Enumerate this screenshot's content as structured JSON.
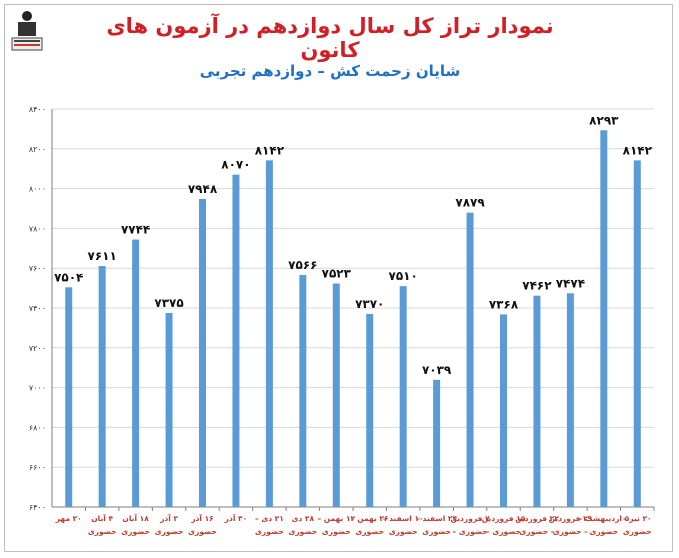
{
  "title": "نمودار تراز کل سال دوازدهم در آزمون های کانون",
  "subtitle": "شایان زحمت کش – دوازدهم تجربی",
  "colors": {
    "bar": "#5b9bd5",
    "title": "#d21f26",
    "subtitle": "#1f6fc4",
    "grid": "#d9d9d9",
    "tick_x": "#c0392b"
  },
  "chart_data": {
    "type": "bar",
    "title": "نمودار تراز کل سال دوازدهم در آزمون های کانون",
    "subtitle": "شایان زحمت کش – دوازدهم تجربی",
    "xlabel": "",
    "ylabel": "",
    "ylim": [
      6400,
      8400
    ],
    "yticks": [
      "۸۴۰۰",
      "۸۲۰۰",
      "۸۰۰۰",
      "۷۸۰۰",
      "۷۶۰۰",
      "۷۴۰۰",
      "۷۲۰۰",
      "۷۰۰۰",
      "۶۸۰۰",
      "۶۶۰۰",
      "۶۴۰۰"
    ],
    "yticks_values": [
      8400,
      8200,
      8000,
      7800,
      7600,
      7400,
      7200,
      7000,
      6800,
      6600,
      6400
    ],
    "grid": true,
    "categories": [
      [
        "۲۰ مهر"
      ],
      [
        "۴ آبان",
        "حضوری"
      ],
      [
        "۱۸ آبان",
        "حضوری"
      ],
      [
        "۲ آذر",
        "حضوری"
      ],
      [
        "۱۶ آذر",
        "حضوری"
      ],
      [
        "۳۰ آذر"
      ],
      [
        "۲۱ دی –",
        "حضوری"
      ],
      [
        "۲۸ دی",
        "حضوری"
      ],
      [
        "۱۲ بهمن –",
        "حضوری"
      ],
      [
        "۲۶ بهمن –",
        "حضوری"
      ],
      [
        "۱۰ اسفند –",
        "حضوری"
      ],
      [
        "۲۴ اسفند –",
        "حضوری"
      ],
      [
        "۷ فروردین",
        "حضوری –"
      ],
      [
        "۱۵ فروردین",
        "حضوری –"
      ],
      [
        "۲۲ فروردین",
        "– حضوری"
      ],
      [
        "۲۹ فروردین",
        "– حضوری"
      ],
      [
        "۵ اردیبهشت –",
        "حضوری"
      ],
      [
        "۲۰ تیر –",
        "حضوری"
      ]
    ],
    "values": [
      7504,
      7611,
      7744,
      7375,
      7948,
      8070,
      8142,
      7566,
      7523,
      7370,
      7510,
      7039,
      7879,
      7368,
      7462,
      7474,
      8293,
      8142
    ],
    "data_labels": [
      "۷۵۰۴",
      "۷۶۱۱",
      "۷۷۴۴",
      "۷۳۷۵",
      "۷۹۴۸",
      "۸۰۷۰",
      "۸۱۴۲",
      "۷۵۶۶",
      "۷۵۲۳",
      "۷۳۷۰",
      "۷۵۱۰",
      "۷۰۳۹",
      "۷۸۷۹",
      "۷۳۶۸",
      "۷۴۶۲",
      "۷۴۷۴",
      "۸۲۹۳",
      "۸۱۴۲"
    ]
  }
}
